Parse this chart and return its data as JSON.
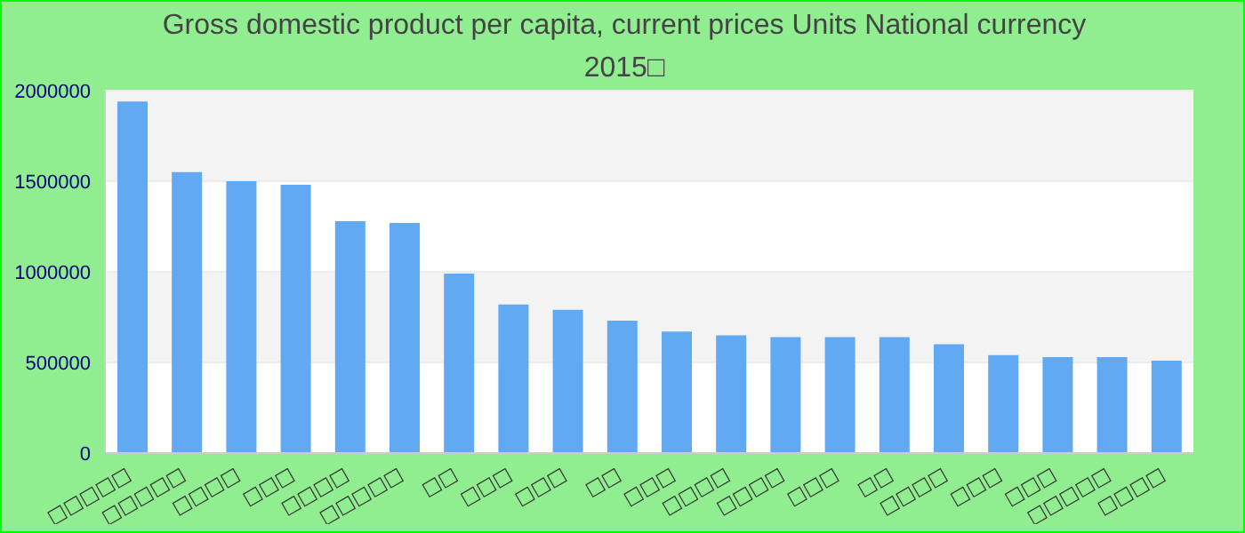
{
  "chart_data": {
    "type": "bar",
    "title": "Gross domestic product per capita, current prices Units National currency 2015□",
    "categories": [
      "□□□□□",
      "□□□□□",
      "□□□□",
      "□□□",
      "□□□□",
      "□□□□□",
      "□□",
      "□□□",
      "□□□",
      "□□",
      "□□□",
      "□□□□",
      "□□□□",
      "□□□",
      "□□",
      "□□□□",
      "□□□",
      "□□□",
      "□□□□□",
      "□□□□"
    ],
    "values": [
      1940000,
      1550000,
      1500000,
      1480000,
      1280000,
      1270000,
      990000,
      820000,
      790000,
      730000,
      670000,
      650000,
      640000,
      640000,
      640000,
      600000,
      540000,
      530000,
      530000,
      510000
    ],
    "color": "#62a9f4",
    "ylim": [
      0,
      2000000
    ],
    "yticks": [
      0,
      500000,
      1000000,
      1500000,
      2000000
    ],
    "grid": "y"
  }
}
